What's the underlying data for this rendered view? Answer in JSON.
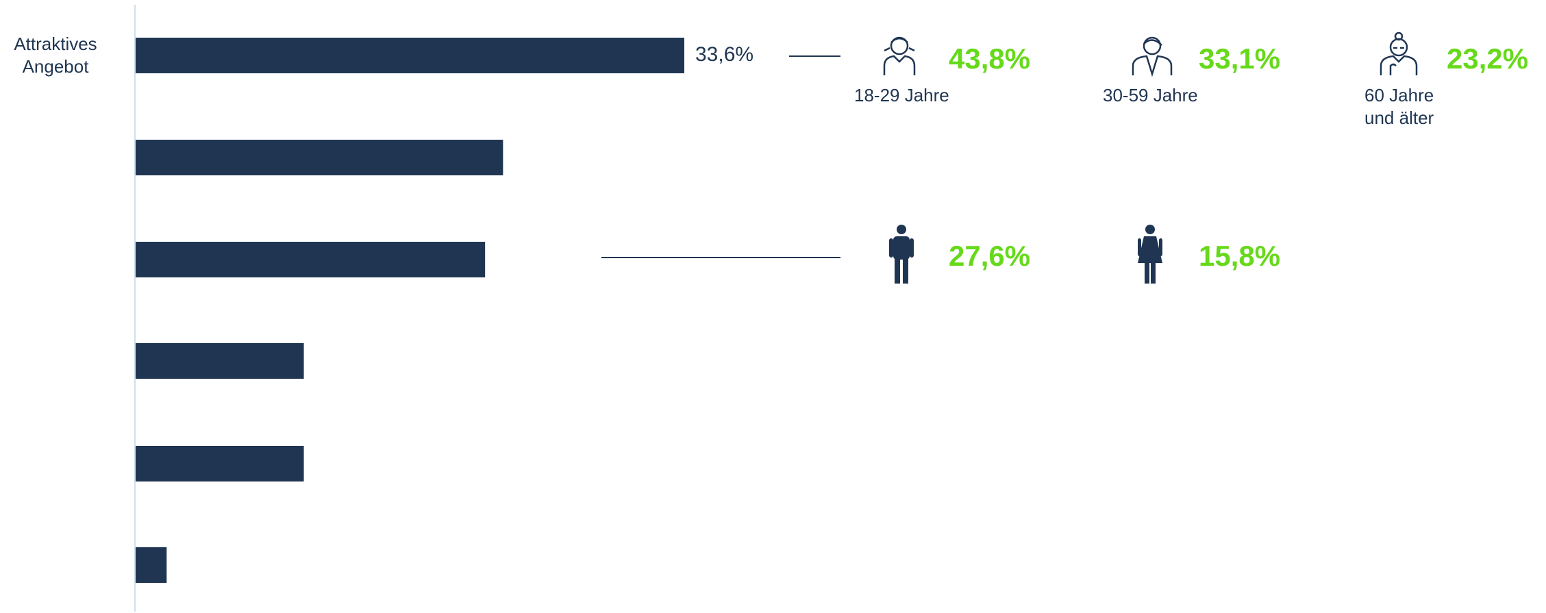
{
  "chart_data": {
    "type": "bar",
    "orientation": "horizontal",
    "color": "#1f3552",
    "categories": [
      "Attraktives\nAngebot",
      null,
      null,
      null,
      null,
      null
    ],
    "values": [
      33.6,
      22.5,
      21.4,
      10.3,
      10.3,
      1.9
    ],
    "value_labels": [
      "33,6%",
      null,
      null,
      null,
      null,
      null
    ],
    "highlight_color": "#66d91a",
    "age_groups": [
      {
        "label": "18-29 Jahre",
        "value": 43.8,
        "value_label": "43,8%"
      },
      {
        "label": "30-59 Jahre",
        "value": 33.1,
        "value_label": "33,1%"
      },
      {
        "label": "60 Jahre\nund älter",
        "value": 23.2,
        "value_label": "23,2%"
      }
    ],
    "gender": [
      {
        "value": 27.6,
        "value_label": "27,6%"
      },
      {
        "value": 15.8,
        "value_label": "15,8%"
      }
    ]
  }
}
